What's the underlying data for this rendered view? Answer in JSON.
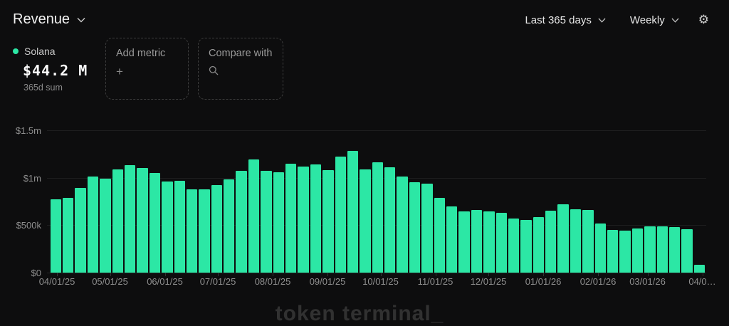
{
  "header": {
    "title": "Revenue",
    "range_label": "Last 365 days",
    "interval_label": "Weekly"
  },
  "legend": {
    "series_name": "Solana",
    "total_value": "$44.2 M",
    "total_caption": "365d sum"
  },
  "actions": {
    "add_metric_label": "Add metric",
    "add_metric_icon": "+",
    "compare_with_label": "Compare with"
  },
  "watermark": "token terminal_",
  "colors": {
    "background": "#0d0d0e",
    "bar_green": "#2ce7a5"
  },
  "chart_data": {
    "type": "bar",
    "title": "Revenue — Solana — Weekly — Last 365 days",
    "series_name": "Solana",
    "unit": "USD",
    "ylim": [
      0,
      1500000
    ],
    "yticks": [
      0,
      500000,
      1000000,
      1500000
    ],
    "ytick_labels": [
      "$0",
      "$500k",
      "$1m",
      "$1.5m"
    ],
    "x_month_labels": [
      "04/01/25",
      "05/01/25",
      "06/01/25",
      "07/01/25",
      "08/01/25",
      "09/01/25",
      "10/01/25",
      "11/01/25",
      "12/01/25",
      "01/01/26",
      "02/01/26",
      "03/01/26",
      "04/0…"
    ],
    "grid": "horizontal",
    "legend_position": "top-left",
    "values_usd": [
      775000,
      790000,
      890000,
      1010000,
      990000,
      1090000,
      1130000,
      1100000,
      1050000,
      960000,
      970000,
      875000,
      880000,
      925000,
      980000,
      1070000,
      1190000,
      1070000,
      1060000,
      1150000,
      1120000,
      1140000,
      1080000,
      1220000,
      1280000,
      1090000,
      1160000,
      1110000,
      1010000,
      955000,
      940000,
      790000,
      700000,
      645000,
      660000,
      645000,
      630000,
      570000,
      552000,
      587000,
      652000,
      720000,
      670000,
      660000,
      520000,
      450000,
      440000,
      465000,
      485000,
      490000,
      480000,
      455000,
      82000
    ]
  }
}
